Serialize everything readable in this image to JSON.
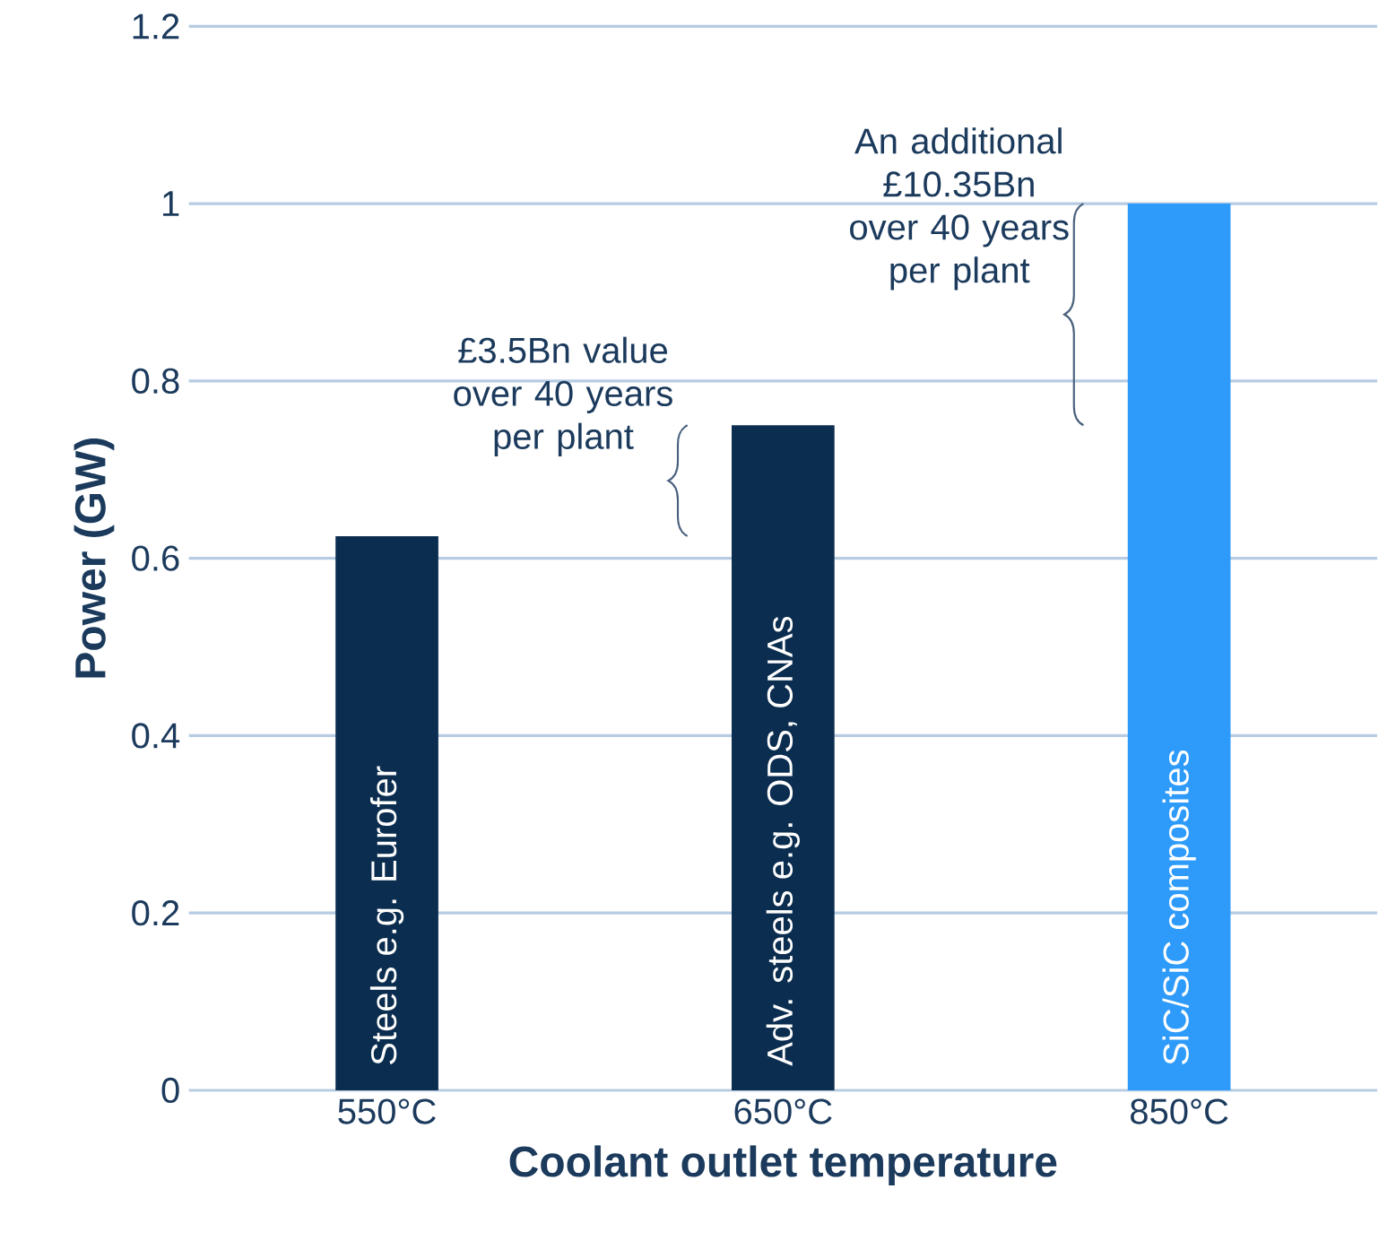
{
  "chart_data": {
    "type": "bar",
    "categories": [
      "550°C",
      "650°C",
      "850°C"
    ],
    "values": [
      0.625,
      0.75,
      1.0
    ],
    "colors": [
      "#0b2d4f",
      "#0b2d4f",
      "#2e9bfa"
    ],
    "xlabel": "Coolant outlet temperature",
    "ylabel": "Power (GW)",
    "ylim": [
      0,
      1.2
    ],
    "yticks": [
      0,
      0.2,
      0.4,
      0.6,
      0.8,
      1,
      1.2
    ],
    "grid": "y",
    "annotations": [
      "Steels e.g. Eurofer",
      "Adv. steels e.g. ODS, CNAs",
      "SiC/SiC composites",
      "£3.5Bn value over 40 years per plant",
      "An additional £10.35Bn over 40 years per plant"
    ]
  }
}
